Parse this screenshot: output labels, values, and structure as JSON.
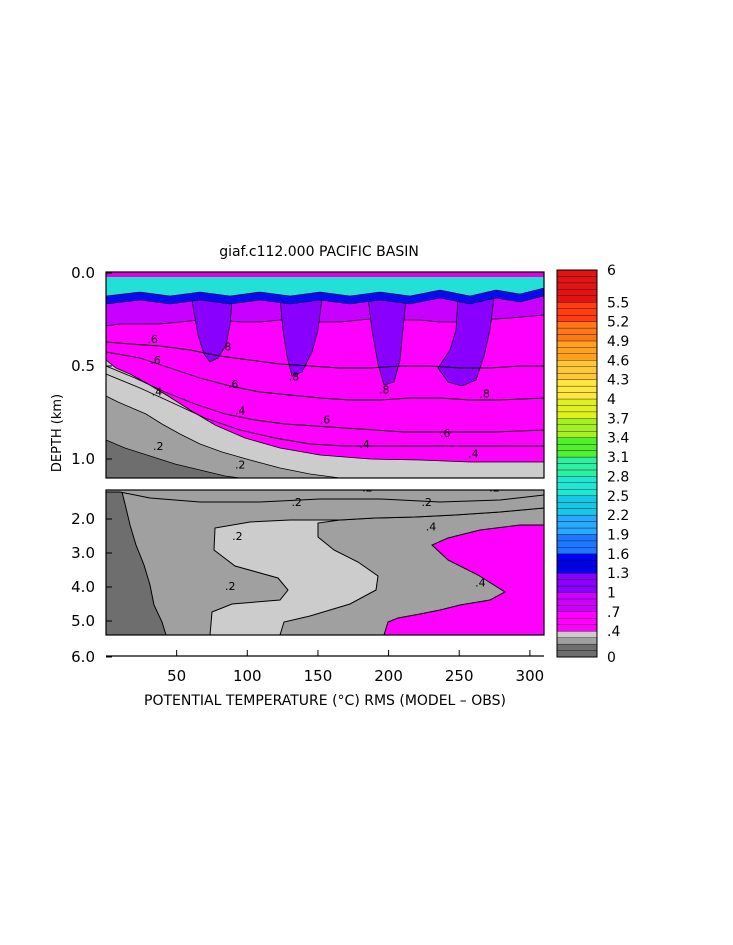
{
  "chart_data": {
    "type": "heatmap",
    "title": "giaf.c112.000 PACIFIC BASIN",
    "xlabel": "POTENTIAL TEMPERATURE (°C) RMS (MODEL – OBS)",
    "ylabel": "DEPTH (km)",
    "xlim": [
      0,
      310
    ],
    "x_ticks": [
      "50",
      "100",
      "150",
      "200",
      "250",
      "300"
    ],
    "panels": [
      {
        "name": "upper",
        "ylim": [
          0.0,
          1.1
        ],
        "y_ticks": [
          "0.0",
          "0.5",
          "1.0"
        ],
        "contour_labels": [
          {
            "x": 35,
            "y": 0.49,
            "text": ".6"
          },
          {
            "x": 33,
            "y": 0.38,
            "text": ".6"
          },
          {
            "x": 36,
            "y": 0.66,
            "text": ".4"
          },
          {
            "x": 37,
            "y": 0.95,
            "text": ".2"
          },
          {
            "x": 95,
            "y": 0.76,
            "text": ".4"
          },
          {
            "x": 90,
            "y": 0.62,
            "text": ".6"
          },
          {
            "x": 85,
            "y": 0.42,
            "text": ".8"
          },
          {
            "x": 133,
            "y": 0.58,
            "text": ".8"
          },
          {
            "x": 155,
            "y": 0.81,
            "text": ".6"
          },
          {
            "x": 183,
            "y": 0.94,
            "text": ".4"
          },
          {
            "x": 197,
            "y": 0.65,
            "text": ".8"
          },
          {
            "x": 240,
            "y": 0.88,
            "text": ".6"
          },
          {
            "x": 260,
            "y": 0.99,
            "text": ".4"
          },
          {
            "x": 268,
            "y": 0.67,
            "text": ".8"
          },
          {
            "x": 95,
            "y": 1.05,
            "text": ".2"
          }
        ]
      },
      {
        "name": "lower",
        "ylim": [
          1.5,
          6.0
        ],
        "y_ticks": [
          "1.0",
          "2.0",
          "3.0",
          "4.0",
          "5.0",
          "6.0"
        ],
        "contour_labels": [
          {
            "x": 185,
            "y": 1.55,
            "text": ".2"
          },
          {
            "x": 275,
            "y": 1.55,
            "text": ".2"
          },
          {
            "x": 135,
            "y": 2.0,
            "text": ".2"
          },
          {
            "x": 227,
            "y": 2.0,
            "text": ".2"
          },
          {
            "x": 93,
            "y": 3.05,
            "text": ".2"
          },
          {
            "x": 88,
            "y": 4.6,
            "text": ".2"
          },
          {
            "x": 230,
            "y": 2.75,
            "text": ".4"
          },
          {
            "x": 265,
            "y": 4.5,
            "text": ".4"
          }
        ]
      }
    ],
    "colorbar": {
      "labels": [
        "6",
        "5.5",
        "5.2",
        "4.9",
        "4.6",
        "4.3",
        "4",
        "3.7",
        "3.4",
        "3.1",
        "2.8",
        "2.5",
        "2.2",
        "1.9",
        "1.6",
        "1.3",
        "1",
        ".7",
        ".4",
        "0"
      ],
      "label_values": [
        6.0,
        5.5,
        5.2,
        4.9,
        4.6,
        4.3,
        4.0,
        3.7,
        3.4,
        3.1,
        2.8,
        2.5,
        2.2,
        1.9,
        1.6,
        1.3,
        1.0,
        0.7,
        0.4,
        0.0
      ],
      "colors": {
        "0.0": "#6e6e6e",
        "0.2": "#a0a0a0",
        "0.3": "#cccccc",
        "0.4": "#ff00ff",
        "0.7": "#d000ff",
        "1.0": "#8a00ff",
        "1.3": "#0000ee",
        "1.6": "#1e78ff",
        "1.9": "#29a8ff",
        "2.2": "#16c8e6",
        "2.5": "#22e6d2",
        "2.8": "#2ef0a0",
        "3.1": "#50f030",
        "3.4": "#a4f020",
        "3.7": "#e0f020",
        "4.0": "#ffe640",
        "4.3": "#ffc83c",
        "4.6": "#ffa020",
        "4.9": "#ff7818",
        "5.2": "#ff3c14",
        "5.5": "#e01414",
        "6.0": "#b00000"
      }
    }
  }
}
